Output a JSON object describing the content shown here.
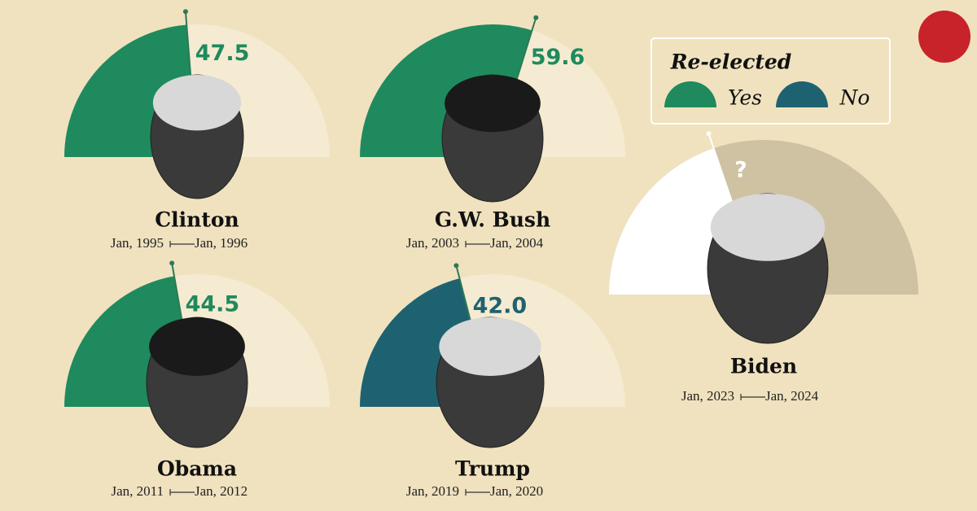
{
  "chart_data": {
    "type": "gauge",
    "categories": [
      "Clinton",
      "G.W. Bush",
      "Obama",
      "Trump",
      "Biden"
    ],
    "start": [
      "Jan, 1995",
      "Jan, 2003",
      "Jan, 2011",
      "Jan, 2019",
      "Jan, 2023"
    ],
    "end": [
      "Jan, 1996",
      "Jan, 2004",
      "Jan, 2012",
      "Jan, 2020",
      "Jan, 2024"
    ],
    "values": [
      47.5,
      59.6,
      44.5,
      42.0,
      null
    ],
    "value_labels": [
      "47.5",
      "59.6",
      "44.5",
      "42.0",
      null
    ],
    "outcome": [
      0,
      0,
      0,
      1,
      null
    ],
    "annotation": "?",
    "ylim": [
      0,
      100
    ],
    "legend": {
      "title": "Re-elected",
      "entries": [
        {
          "name": "Yes",
          "color": "#1f8a5e"
        },
        {
          "name": "No",
          "color": "#1e6271"
        }
      ]
    }
  }
}
